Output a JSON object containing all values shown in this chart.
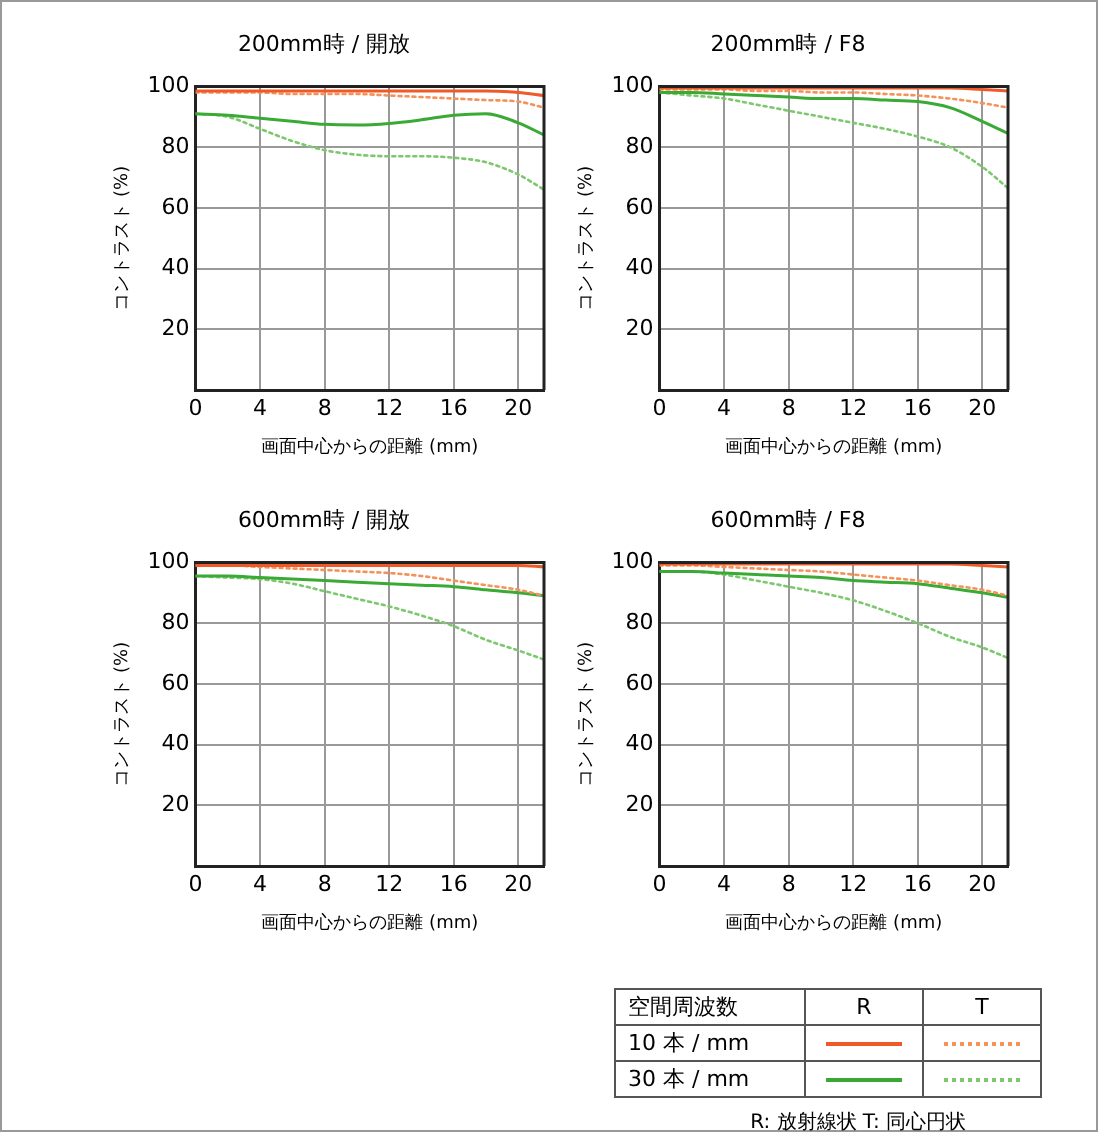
{
  "chart_data": [
    {
      "type": "line",
      "title": "200mm時 / 開放",
      "xlabel": "画面中心からの距離 (mm)",
      "ylabel": "コントラスト (%)",
      "x": [
        0,
        2,
        4,
        6,
        8,
        10,
        12,
        14,
        16,
        18,
        20,
        21.6
      ],
      "xlim": [
        0,
        21.6
      ],
      "xticks": [
        0,
        4,
        8,
        12,
        16,
        20
      ],
      "ylim": [
        0,
        100
      ],
      "yticks": [
        20,
        40,
        60,
        80,
        100
      ],
      "grid": true,
      "legend": false,
      "marker": "none",
      "series": [
        {
          "color": "#f05a28",
          "line_style": "solid",
          "values": [
            98.5,
            98.5,
            98.5,
            98.5,
            98.5,
            98.5,
            98.5,
            98.5,
            98.5,
            98.5,
            98,
            97
          ]
        },
        {
          "color": "#f5925a",
          "line_style": "dotted",
          "values": [
            98,
            98,
            98,
            97.5,
            97.5,
            97.5,
            97,
            96.5,
            96,
            95.5,
            95,
            93
          ]
        },
        {
          "color": "#3aaa35",
          "line_style": "solid",
          "values": [
            91,
            90.5,
            89.5,
            88.5,
            87.5,
            87.3,
            87.8,
            89,
            90.5,
            91,
            88,
            84
          ]
        },
        {
          "color": "#7dc86e",
          "line_style": "dotted",
          "values": [
            91,
            90,
            86,
            82,
            79,
            77.5,
            77,
            77,
            76.5,
            75,
            71,
            66
          ]
        }
      ]
    },
    {
      "type": "line",
      "title": "200mm時 / F8",
      "xlabel": "画面中心からの距離 (mm)",
      "ylabel": "コントラスト (%)",
      "x": [
        0,
        2,
        4,
        6,
        8,
        10,
        12,
        14,
        16,
        18,
        20,
        21.6
      ],
      "xlim": [
        0,
        21.6
      ],
      "xticks": [
        0,
        4,
        8,
        12,
        16,
        20
      ],
      "ylim": [
        0,
        100
      ],
      "yticks": [
        20,
        40,
        60,
        80,
        100
      ],
      "grid": true,
      "legend": false,
      "marker": "none",
      "series": [
        {
          "color": "#f05a28",
          "line_style": "solid",
          "values": [
            99.5,
            99.5,
            99.5,
            99.5,
            99.5,
            99.5,
            99.5,
            99.5,
            99.5,
            99.5,
            99,
            98.5
          ]
        },
        {
          "color": "#f5925a",
          "line_style": "dotted",
          "values": [
            99,
            99,
            99,
            98.5,
            98.5,
            98,
            98,
            97.5,
            97,
            96,
            94.5,
            93
          ]
        },
        {
          "color": "#3aaa35",
          "line_style": "solid",
          "values": [
            98,
            98,
            97.5,
            97,
            96.5,
            96,
            96,
            95.5,
            95,
            93,
            88.5,
            84.5
          ]
        },
        {
          "color": "#7dc86e",
          "line_style": "dotted",
          "values": [
            98,
            97,
            96,
            94,
            92,
            90,
            88,
            86,
            83.5,
            80,
            73.5,
            66.5
          ]
        }
      ]
    },
    {
      "type": "line",
      "title": "600mm時 / 開放",
      "xlabel": "画面中心からの距離 (mm)",
      "ylabel": "コントラスト (%)",
      "x": [
        0,
        2,
        4,
        6,
        8,
        10,
        12,
        14,
        16,
        18,
        20,
        21.6
      ],
      "xlim": [
        0,
        21.6
      ],
      "xticks": [
        0,
        4,
        8,
        12,
        16,
        20
      ],
      "ylim": [
        0,
        100
      ],
      "yticks": [
        20,
        40,
        60,
        80,
        100
      ],
      "grid": true,
      "legend": false,
      "marker": "none",
      "series": [
        {
          "color": "#f05a28",
          "line_style": "solid",
          "values": [
            99,
            99,
            99,
            99,
            99,
            99,
            99,
            99,
            99,
            99,
            99,
            98.5
          ]
        },
        {
          "color": "#f5925a",
          "line_style": "dotted",
          "values": [
            99,
            99,
            98.5,
            98,
            97.5,
            97,
            96.5,
            95.5,
            94,
            92.5,
            91,
            89
          ]
        },
        {
          "color": "#3aaa35",
          "line_style": "solid",
          "values": [
            95.5,
            95.5,
            95,
            94.5,
            94,
            93.5,
            93,
            92.5,
            92,
            91,
            90,
            89
          ]
        },
        {
          "color": "#7dc86e",
          "line_style": "dotted",
          "values": [
            95.5,
            95,
            94.5,
            93,
            90.5,
            88,
            85.5,
            82.5,
            79,
            74.5,
            71,
            68
          ]
        }
      ]
    },
    {
      "type": "line",
      "title": "600mm時 / F8",
      "xlabel": "画面中心からの距離 (mm)",
      "ylabel": "コントラスト (%)",
      "x": [
        0,
        2,
        4,
        6,
        8,
        10,
        12,
        14,
        16,
        18,
        20,
        21.6
      ],
      "xlim": [
        0,
        21.6
      ],
      "xticks": [
        0,
        4,
        8,
        12,
        16,
        20
      ],
      "ylim": [
        0,
        100
      ],
      "yticks": [
        20,
        40,
        60,
        80,
        100
      ],
      "grid": true,
      "legend": false,
      "marker": "none",
      "series": [
        {
          "color": "#f05a28",
          "line_style": "solid",
          "values": [
            99.5,
            99.5,
            99.5,
            99.5,
            99.5,
            99.5,
            99.5,
            99.5,
            99.5,
            99.5,
            99,
            98.5
          ]
        },
        {
          "color": "#f5925a",
          "line_style": "dotted",
          "values": [
            99,
            99,
            98.5,
            98,
            97.5,
            97,
            96,
            95,
            94,
            92.5,
            91,
            89
          ]
        },
        {
          "color": "#3aaa35",
          "line_style": "solid",
          "values": [
            97,
            97,
            96.5,
            96,
            95.5,
            95,
            94,
            93.5,
            93,
            91.5,
            90,
            88.5
          ]
        },
        {
          "color": "#7dc86e",
          "line_style": "dotted",
          "values": [
            97,
            97,
            96,
            94,
            92,
            90,
            87.5,
            84,
            80,
            75.5,
            72,
            68.5
          ]
        }
      ]
    },
    {
      "type": "other",
      "annotations": [
        "空間周波数",
        "R",
        "T",
        "10 本 / mm",
        "30 本 / mm",
        "R: 放射線状  T: 同心円状"
      ]
    }
  ]
}
